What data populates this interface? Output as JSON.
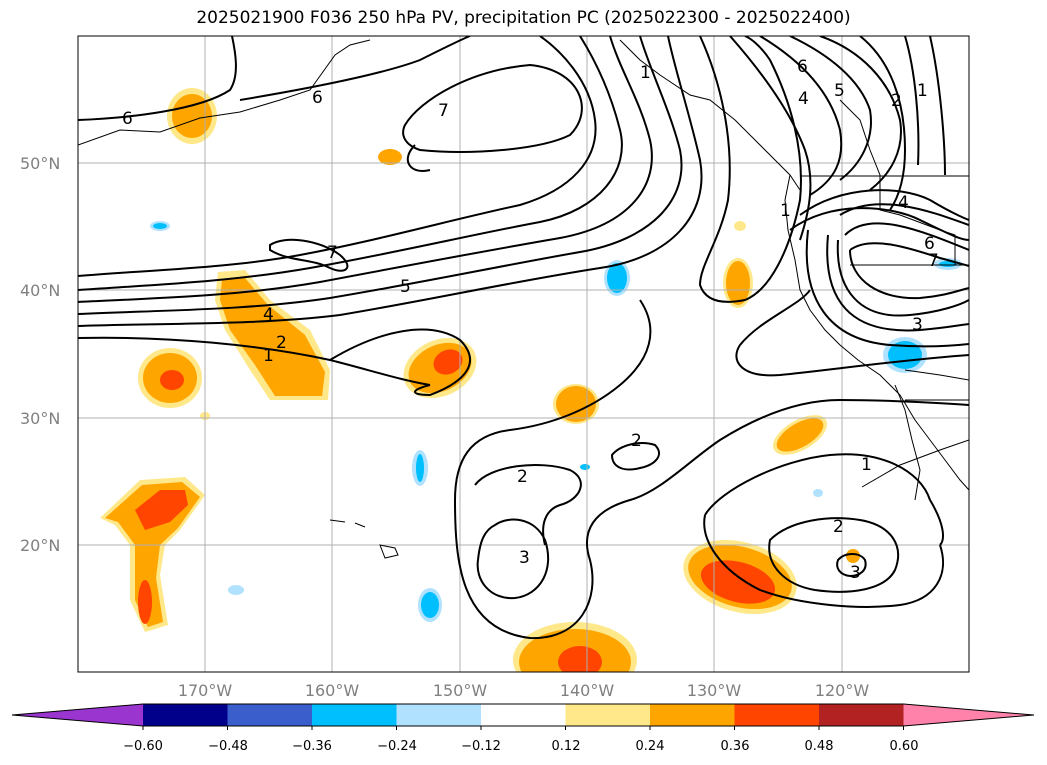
{
  "title": "2025021900 F036 250 hPa PV, precipitation PC (2025022300 - 2025022400)",
  "map": {
    "lon_range": [
      -180,
      -110
    ],
    "lat_range": [
      10,
      60
    ],
    "lat_labels": [
      "50°N",
      "40°N",
      "30°N",
      "20°N"
    ],
    "lon_labels": [
      "170°W",
      "160°W",
      "150°W",
      "140°W",
      "130°W",
      "120°W"
    ],
    "grid": true
  },
  "colorbar": {
    "extend": "both",
    "colors": [
      "#9a35d0",
      "#00008b",
      "#3a5fcd",
      "#00bfff",
      "#b0e2ff",
      "#ffffff",
      "#ffe88a",
      "#ffa500",
      "#ff4500",
      "#b22222",
      "#ff82ab"
    ],
    "tick_labels": [
      "−0.60",
      "−0.48",
      "−0.36",
      "−0.24",
      "−0.12",
      "0.12",
      "0.24",
      "0.36",
      "0.48",
      "0.60"
    ]
  },
  "contour_labels": [
    "6",
    "6",
    "7",
    "7",
    "5",
    "4",
    "2",
    "1",
    "6",
    "4",
    "5",
    "2",
    "1",
    "1",
    "4",
    "6",
    "7",
    "3",
    "2",
    "2",
    "3",
    "1",
    "2",
    "3",
    "1"
  ]
}
